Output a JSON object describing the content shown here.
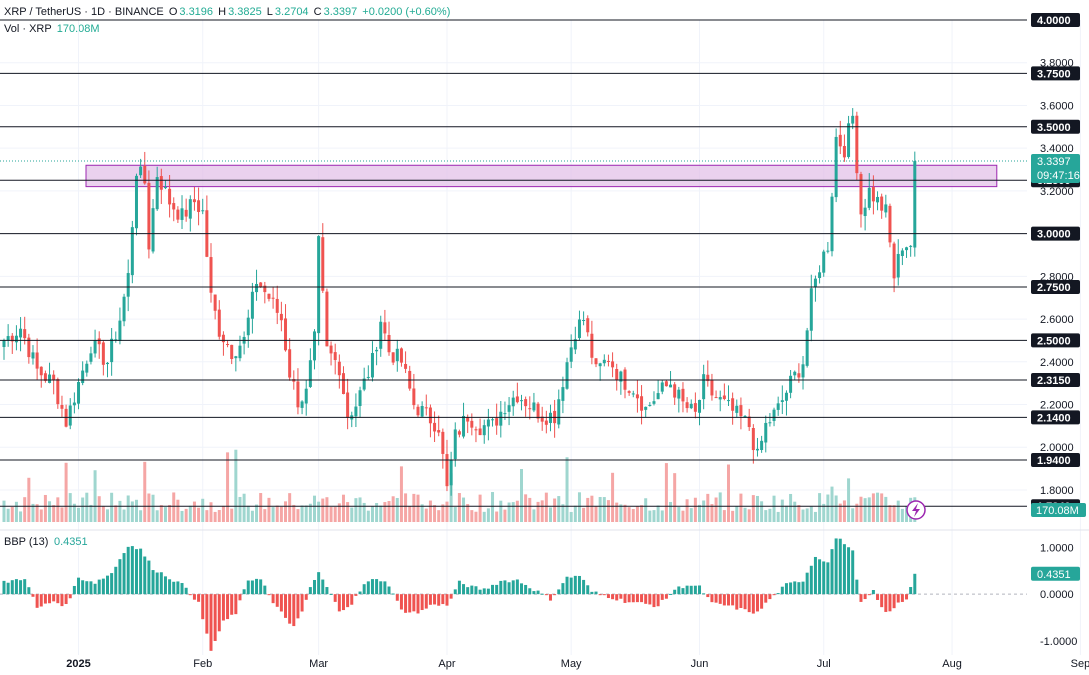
{
  "header": {
    "symbol": "XRP / TetherUS · 1D · BINANCE",
    "o_label": "O",
    "o_value": "3.3196",
    "h_label": "H",
    "h_value": "3.3825",
    "l_label": "L",
    "l_value": "3.2704",
    "c_label": "C",
    "c_value": "3.3397",
    "change": "+0.0200 (+0.60%)",
    "vol_label": "Vol · XRP",
    "vol_value": "170.08M"
  },
  "colors": {
    "up": "#26a69a",
    "down": "#ef5350",
    "vol_up": "#9fd6cf",
    "vol_down": "#f5a6a5",
    "level_line": "#131722",
    "zone_fill": "#e1bee7",
    "zone_border": "#9c27b0",
    "price_badge": "#26a69a"
  },
  "chart_data": {
    "type": "candlestick",
    "price_axis": {
      "min": 1.65,
      "max": 4.0,
      "ticks": [
        "4.0000",
        "3.8000",
        "3.6000",
        "3.4000",
        "3.2000",
        "3.0000",
        "2.8000",
        "2.6000",
        "2.4000",
        "2.2000",
        "2.0000",
        "1.8000"
      ],
      "tick_values": [
        4.0,
        3.8,
        3.6,
        3.4,
        3.2,
        3.0,
        2.8,
        2.6,
        2.4,
        2.2,
        2.0,
        1.8
      ]
    },
    "levels": [
      {
        "value": 4.0,
        "label": "4.0000"
      },
      {
        "value": 3.75,
        "label": "3.7500"
      },
      {
        "value": 3.5,
        "label": "3.5000"
      },
      {
        "value": 3.25,
        "label": "3.2500"
      },
      {
        "value": 3.0,
        "label": "3.0000"
      },
      {
        "value": 2.75,
        "label": "2.7500"
      },
      {
        "value": 2.5,
        "label": "2.5000"
      },
      {
        "value": 2.315,
        "label": "2.3150"
      },
      {
        "value": 2.14,
        "label": "2.1400"
      },
      {
        "value": 1.94,
        "label": "1.9400"
      },
      {
        "value": 1.724,
        "label": "1.7240"
      }
    ],
    "zone": {
      "from": 3.22,
      "to": 3.32,
      "start_day": 0,
      "end_day": 220
    },
    "current_price": {
      "value": 3.3397,
      "label": "3.3397",
      "countdown": "09:47:16"
    },
    "volume_badge": "170.08M",
    "x_axis": {
      "labels": [
        "2025",
        "Feb",
        "Mar",
        "Apr",
        "May",
        "Jun",
        "Jul",
        "Aug",
        "Sep"
      ],
      "label_days": [
        18,
        48,
        76,
        107,
        137,
        168,
        198,
        229,
        260
      ]
    },
    "anchors": [
      [
        0,
        2.5
      ],
      [
        4,
        2.56
      ],
      [
        8,
        2.36
      ],
      [
        12,
        2.3
      ],
      [
        15,
        2.12
      ],
      [
        18,
        2.3
      ],
      [
        21,
        2.48
      ],
      [
        25,
        2.4
      ],
      [
        28,
        2.6
      ],
      [
        30,
        2.8
      ],
      [
        32,
        3.3
      ],
      [
        34,
        3.24
      ],
      [
        35,
        2.95
      ],
      [
        37,
        3.28
      ],
      [
        40,
        3.15
      ],
      [
        43,
        3.08
      ],
      [
        46,
        3.15
      ],
      [
        48,
        3.1
      ],
      [
        50,
        2.7
      ],
      [
        52,
        2.55
      ],
      [
        55,
        2.45
      ],
      [
        58,
        2.5
      ],
      [
        61,
        2.78
      ],
      [
        64,
        2.7
      ],
      [
        67,
        2.6
      ],
      [
        69,
        2.35
      ],
      [
        71,
        2.22
      ],
      [
        73,
        2.25
      ],
      [
        75,
        2.5
      ],
      [
        76,
        2.95
      ],
      [
        78,
        2.45
      ],
      [
        81,
        2.38
      ],
      [
        83,
        2.15
      ],
      [
        85,
        2.2
      ],
      [
        87,
        2.3
      ],
      [
        89,
        2.4
      ],
      [
        91,
        2.6
      ],
      [
        93,
        2.45
      ],
      [
        96,
        2.4
      ],
      [
        99,
        2.2
      ],
      [
        102,
        2.15
      ],
      [
        105,
        2.1
      ],
      [
        107,
        1.8
      ],
      [
        109,
        2.05
      ],
      [
        112,
        2.15
      ],
      [
        115,
        2.1
      ],
      [
        118,
        2.1
      ],
      [
        121,
        2.2
      ],
      [
        124,
        2.25
      ],
      [
        127,
        2.2
      ],
      [
        130,
        2.15
      ],
      [
        133,
        2.15
      ],
      [
        136,
        2.4
      ],
      [
        138,
        2.55
      ],
      [
        140,
        2.6
      ],
      [
        143,
        2.35
      ],
      [
        146,
        2.42
      ],
      [
        149,
        2.32
      ],
      [
        152,
        2.28
      ],
      [
        155,
        2.18
      ],
      [
        158,
        2.25
      ],
      [
        161,
        2.3
      ],
      [
        164,
        2.2
      ],
      [
        167,
        2.15
      ],
      [
        169,
        2.3
      ],
      [
        171,
        2.25
      ],
      [
        174,
        2.2
      ],
      [
        177,
        2.15
      ],
      [
        180,
        2.1
      ],
      [
        182,
        1.95
      ],
      [
        184,
        2.1
      ],
      [
        187,
        2.18
      ],
      [
        190,
        2.3
      ],
      [
        193,
        2.4
      ],
      [
        195,
        2.7
      ],
      [
        197,
        2.85
      ],
      [
        199,
        2.95
      ],
      [
        201,
        3.45
      ],
      [
        203,
        3.4
      ],
      [
        205,
        3.55
      ],
      [
        207,
        3.1
      ],
      [
        209,
        3.2
      ],
      [
        211,
        3.15
      ],
      [
        213,
        3.1
      ],
      [
        215,
        2.8
      ],
      [
        217,
        2.95
      ],
      [
        219,
        2.95
      ],
      [
        220,
        3.34
      ]
    ],
    "bbp": {
      "label": "BBP (13)",
      "value": "0.4351",
      "min": -1.3,
      "max": 1.2,
      "ticks": [
        "1.0000",
        "0.0000",
        "-1.0000"
      ],
      "tick_values": [
        1.0,
        0.0,
        -1.0
      ],
      "anchors": [
        [
          0,
          0.25
        ],
        [
          5,
          0.35
        ],
        [
          8,
          -0.3
        ],
        [
          12,
          -0.15
        ],
        [
          15,
          -0.25
        ],
        [
          18,
          0.35
        ],
        [
          22,
          0.25
        ],
        [
          26,
          0.45
        ],
        [
          30,
          1.05
        ],
        [
          33,
          0.95
        ],
        [
          36,
          0.55
        ],
        [
          40,
          0.35
        ],
        [
          44,
          0.15
        ],
        [
          47,
          -0.2
        ],
        [
          50,
          -1.2
        ],
        [
          53,
          -0.6
        ],
        [
          56,
          -0.4
        ],
        [
          59,
          0.3
        ],
        [
          62,
          0.35
        ],
        [
          65,
          -0.2
        ],
        [
          68,
          -0.5
        ],
        [
          70,
          -0.7
        ],
        [
          72,
          -0.4
        ],
        [
          74,
          0.15
        ],
        [
          76,
          0.45
        ],
        [
          78,
          0.15
        ],
        [
          81,
          -0.35
        ],
        [
          84,
          -0.2
        ],
        [
          87,
          0.2
        ],
        [
          90,
          0.35
        ],
        [
          93,
          0.2
        ],
        [
          96,
          -0.35
        ],
        [
          100,
          -0.4
        ],
        [
          104,
          -0.2
        ],
        [
          107,
          -0.25
        ],
        [
          110,
          0.25
        ],
        [
          113,
          0.15
        ],
        [
          116,
          0.1
        ],
        [
          120,
          0.28
        ],
        [
          124,
          0.3
        ],
        [
          128,
          0.1
        ],
        [
          132,
          -0.1
        ],
        [
          136,
          0.35
        ],
        [
          139,
          0.4
        ],
        [
          142,
          0.05
        ],
        [
          146,
          -0.05
        ],
        [
          150,
          -0.15
        ],
        [
          154,
          -0.2
        ],
        [
          158,
          -0.25
        ],
        [
          162,
          0.1
        ],
        [
          165,
          0.2
        ],
        [
          168,
          0.15
        ],
        [
          171,
          -0.2
        ],
        [
          175,
          -0.25
        ],
        [
          179,
          -0.35
        ],
        [
          182,
          -0.4
        ],
        [
          185,
          -0.1
        ],
        [
          189,
          0.2
        ],
        [
          193,
          0.3
        ],
        [
          196,
          0.8
        ],
        [
          199,
          0.7
        ],
        [
          201,
          1.2
        ],
        [
          203,
          1.1
        ],
        [
          205,
          0.9
        ],
        [
          207,
          -0.2
        ],
        [
          210,
          0.05
        ],
        [
          212,
          -0.3
        ],
        [
          214,
          -0.4
        ],
        [
          216,
          -0.2
        ],
        [
          218,
          -0.1
        ],
        [
          220,
          0.4351
        ]
      ]
    }
  }
}
